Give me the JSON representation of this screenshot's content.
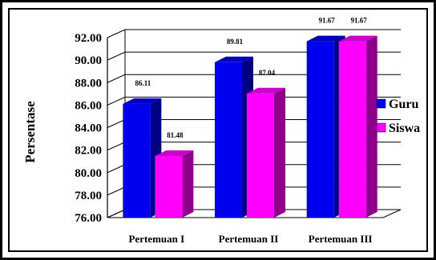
{
  "chart_data": {
    "type": "bar",
    "title": "",
    "xlabel": "",
    "ylabel": "Persentase",
    "ylim": [
      76,
      92
    ],
    "yticks": [
      "76.00",
      "78.00",
      "80.00",
      "82.00",
      "84.00",
      "86.00",
      "88.00",
      "90.00",
      "92.00"
    ],
    "categories": [
      "Pertemuan I",
      "Pertemuan II",
      "Pertemuan III"
    ],
    "series": [
      {
        "name": "Guru",
        "values": [
          86.11,
          89.81,
          91.67
        ],
        "labels": [
          "86.11",
          "89.81",
          "91.67"
        ],
        "color": "#0000ee"
      },
      {
        "name": "Siswa",
        "values": [
          81.48,
          87.04,
          91.67
        ],
        "labels": [
          "81.48",
          "87.04",
          "91.67"
        ],
        "color": "#ff00ff"
      }
    ],
    "grid": true,
    "legend": "right"
  }
}
